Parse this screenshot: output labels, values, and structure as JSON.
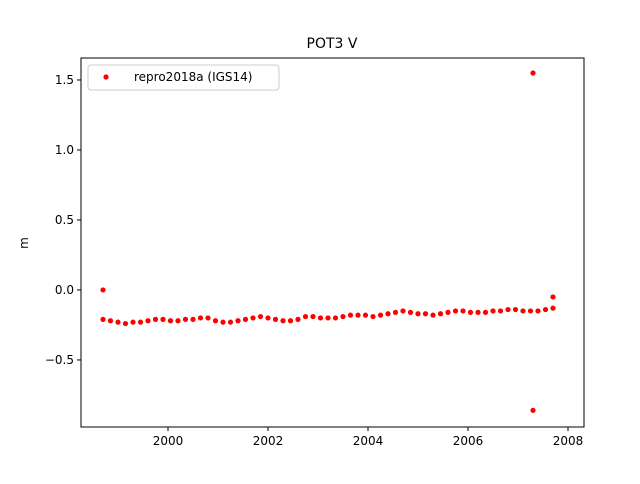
{
  "chart_data": {
    "type": "scatter",
    "title": "POT3 V",
    "y_label": "m",
    "xlim": [
      1998.26,
      2008.32
    ],
    "ylim": [
      -0.979,
      1.657
    ],
    "xticks": [
      2000,
      2002,
      2004,
      2006,
      2008
    ],
    "yticks": [
      {
        "value": -0.5,
        "label": "−0.5"
      },
      {
        "value": 0.0,
        "label": "0.0"
      },
      0.5,
      {
        "value": 1.0,
        "label": "1.0"
      },
      1.5
    ],
    "legend": "upper left",
    "series": [
      {
        "name": "repro2018a (IGS14)",
        "color": "#ff0000",
        "x": [
          1998.7,
          1998.85,
          1999.0,
          1999.15,
          1999.3,
          1999.45,
          1999.6,
          1999.75,
          1999.9,
          2000.05,
          2000.2,
          2000.35,
          2000.5,
          2000.65,
          2000.8,
          2000.95,
          2001.1,
          2001.25,
          2001.4,
          2001.55,
          2001.7,
          2001.85,
          2002.0,
          2002.15,
          2002.3,
          2002.45,
          2002.6,
          2002.75,
          2002.9,
          2003.05,
          2003.2,
          2003.35,
          2003.5,
          2003.65,
          2003.8,
          2003.95,
          2004.1,
          2004.25,
          2004.4,
          2004.55,
          2004.7,
          2004.85,
          2005.0,
          2005.15,
          2005.3,
          2005.45,
          2005.6,
          2005.75,
          2005.9,
          2006.05,
          2006.2,
          2006.35,
          2006.5,
          2006.65,
          2006.8,
          2006.95,
          2007.1,
          2007.25,
          2007.4,
          2007.55,
          2007.7,
          1998.7,
          2007.3,
          2007.3,
          2007.7
        ],
        "values": [
          -0.21,
          -0.22,
          -0.23,
          -0.24,
          -0.23,
          -0.23,
          -0.22,
          -0.21,
          -0.21,
          -0.22,
          -0.22,
          -0.21,
          -0.21,
          -0.2,
          -0.2,
          -0.22,
          -0.23,
          -0.23,
          -0.22,
          -0.21,
          -0.2,
          -0.19,
          -0.2,
          -0.21,
          -0.22,
          -0.22,
          -0.21,
          -0.19,
          -0.19,
          -0.2,
          -0.2,
          -0.2,
          -0.19,
          -0.18,
          -0.18,
          -0.18,
          -0.19,
          -0.18,
          -0.17,
          -0.16,
          -0.15,
          -0.16,
          -0.17,
          -0.17,
          -0.18,
          -0.17,
          -0.16,
          -0.15,
          -0.15,
          -0.16,
          -0.16,
          -0.16,
          -0.15,
          -0.15,
          -0.14,
          -0.14,
          -0.15,
          -0.15,
          -0.15,
          -0.14,
          -0.13,
          0.0,
          1.55,
          -0.86,
          -0.05
        ]
      }
    ]
  }
}
